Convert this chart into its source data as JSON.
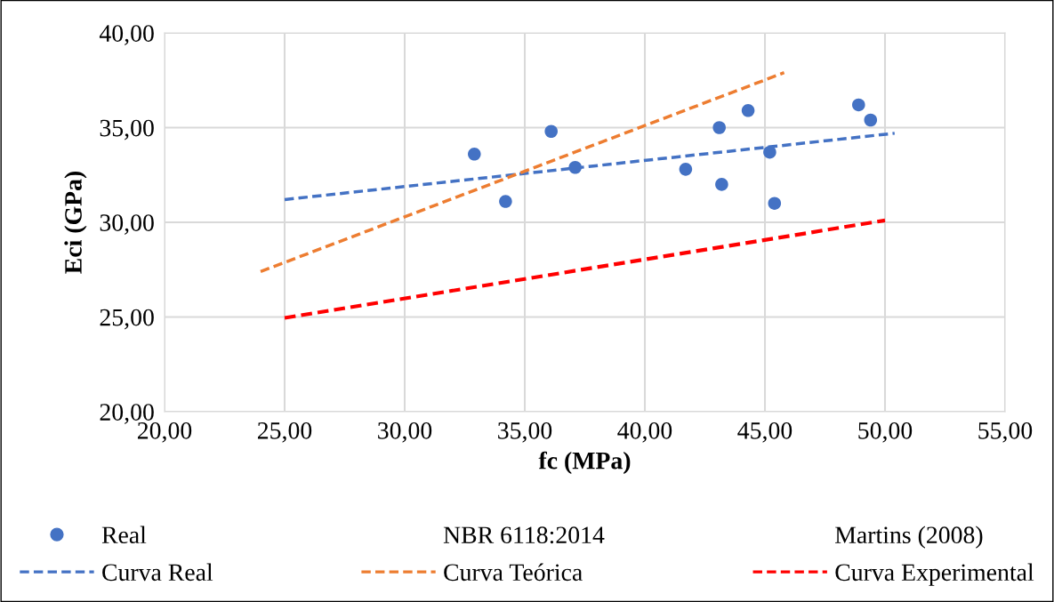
{
  "chart_data": {
    "type": "scatter",
    "xlabel": "fc (MPa)",
    "ylabel": "Eci (GPa)",
    "xlim": [
      20,
      55
    ],
    "ylim": [
      20,
      40
    ],
    "xticks": [
      {
        "value": 20,
        "label": "20,00"
      },
      {
        "value": 25,
        "label": "25,00"
      },
      {
        "value": 30,
        "label": "30,00"
      },
      {
        "value": 35,
        "label": "35,00"
      },
      {
        "value": 40,
        "label": "40,00"
      },
      {
        "value": 45,
        "label": "45,00"
      },
      {
        "value": 50,
        "label": "50,00"
      },
      {
        "value": 55,
        "label": "55,00"
      }
    ],
    "yticks": [
      {
        "value": 20,
        "label": "20,00"
      },
      {
        "value": 25,
        "label": "25,00"
      },
      {
        "value": 30,
        "label": "30,00"
      },
      {
        "value": 35,
        "label": "35,00"
      },
      {
        "value": 40,
        "label": "40,00"
      }
    ],
    "grid": true,
    "legend": "bottom",
    "series": [
      {
        "name": "Real",
        "color": "#4472c4",
        "marker": "circle",
        "x": [
          32.9,
          34.2,
          36.1,
          37.1,
          41.7,
          43.2,
          43.1,
          44.3,
          45.2,
          45.4,
          48.9,
          49.4
        ],
        "values": [
          33.6,
          31.1,
          34.8,
          32.9,
          32.8,
          32.0,
          35.0,
          35.9,
          33.7,
          31.0,
          36.2,
          35.4
        ]
      },
      {
        "name": "NBR 6118:2014",
        "marker": "none"
      },
      {
        "name": "Martins (2008)",
        "marker": "none"
      },
      {
        "name": "Curva Real",
        "type": "line",
        "color": "#4472c4",
        "line_style": "dashed",
        "x": [
          25,
          50.4
        ],
        "values": [
          31.2,
          34.7
        ]
      },
      {
        "name": "Curva Teórica",
        "type": "line",
        "color": "#ed7d31",
        "line_style": "dashed",
        "x": [
          24,
          45.8
        ],
        "values": [
          27.4,
          37.9
        ]
      },
      {
        "name": "Curva Experimental",
        "type": "line",
        "color": "#ff0000",
        "line_style": "dashed",
        "x": [
          25,
          50
        ],
        "values": [
          24.95,
          30.1
        ]
      }
    ]
  }
}
